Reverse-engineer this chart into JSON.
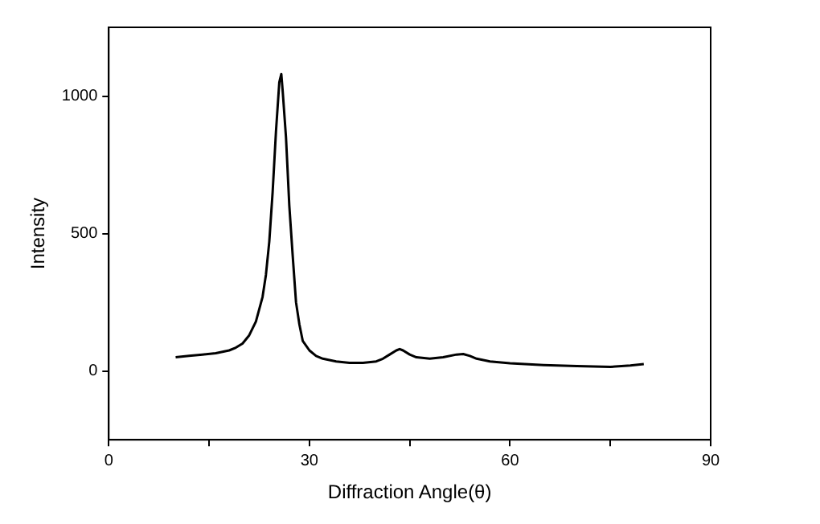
{
  "chart_data": {
    "type": "line",
    "xlabel": "Diffraction Angle(θ)",
    "ylabel": "Intensity",
    "x": [
      10,
      12,
      14,
      16,
      18,
      19,
      20,
      21,
      22,
      23,
      23.5,
      24,
      24.5,
      25,
      25.5,
      25.8,
      26,
      26.5,
      27,
      27.5,
      28,
      28.5,
      29,
      30,
      31,
      32,
      34,
      36,
      38,
      40,
      41,
      42,
      43,
      43.5,
      44,
      45,
      46,
      48,
      50,
      52,
      53,
      54,
      55,
      57,
      60,
      65,
      70,
      75,
      78,
      80
    ],
    "series": [
      {
        "color": "#000000",
        "values": [
          50,
          55,
          60,
          65,
          75,
          85,
          100,
          130,
          180,
          270,
          350,
          470,
          650,
          870,
          1050,
          1080,
          1020,
          850,
          600,
          420,
          250,
          170,
          110,
          75,
          55,
          45,
          35,
          30,
          30,
          35,
          45,
          60,
          75,
          80,
          75,
          60,
          50,
          45,
          50,
          60,
          62,
          55,
          45,
          35,
          28,
          22,
          18,
          15,
          20,
          25
        ]
      }
    ],
    "xlim": [
      0,
      90
    ],
    "xticks": [
      0,
      {
        "value": 15,
        "label": null
      },
      30,
      {
        "value": 45,
        "label": null
      },
      60,
      {
        "value": 75,
        "label": null
      },
      90
    ],
    "ylim": [
      -250,
      1250
    ],
    "yticks": [
      0,
      500,
      1000
    ],
    "grid": false,
    "legend": false,
    "marker": "none",
    "line_style": "solid"
  }
}
